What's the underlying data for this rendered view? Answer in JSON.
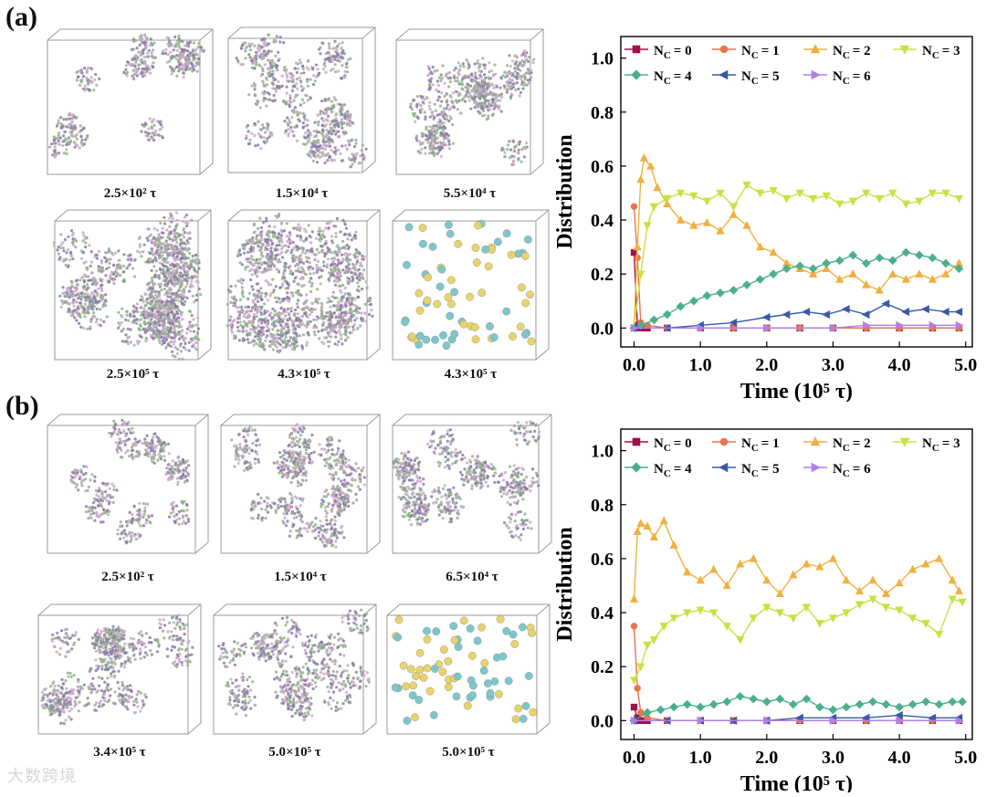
{
  "figure": {
    "watermark": "大数跨境",
    "panels": [
      {
        "label": "(a)",
        "snapshots": [
          {
            "caption": "2.5×10² τ",
            "style": "clusters"
          },
          {
            "caption": "1.5×10⁴ τ",
            "style": "network"
          },
          {
            "caption": "5.5×10⁴ τ",
            "style": "network"
          },
          {
            "caption": "2.5×10⁵ τ",
            "style": "dense"
          },
          {
            "caption": "4.3×10⁵ τ",
            "style": "dense"
          },
          {
            "caption": "4.3×10⁵ τ",
            "style": "beads"
          }
        ]
      },
      {
        "label": "(b)",
        "snapshots": [
          {
            "caption": "2.5×10² τ",
            "style": "clusters"
          },
          {
            "caption": "1.5×10⁴ τ",
            "style": "network"
          },
          {
            "caption": "6.5×10⁴ τ",
            "style": "network"
          },
          {
            "caption": "3.4×10⁵ τ",
            "style": "network"
          },
          {
            "caption": "5.0×10⁵ τ",
            "style": "network"
          },
          {
            "caption": "5.0×10⁵ τ",
            "style": "beads"
          }
        ]
      }
    ],
    "colors": {
      "bead_a": "#7ec6cc",
      "bead_b": "#e8d36a",
      "grain1": "#8b7aa8",
      "grain2": "#8fb48a",
      "grain3": "#c9a8c4",
      "box": "#9a9a9a"
    }
  },
  "chart_data": [
    {
      "type": "line",
      "panel": "(a)",
      "xlabel": "Time (10⁵ τ)",
      "ylabel": "Distribution",
      "xlim": [
        -0.2,
        5.1
      ],
      "ylim": [
        -0.07,
        1.08
      ],
      "xticks": [
        "0.0",
        "1.0",
        "2.0",
        "3.0",
        "4.0",
        "5.0"
      ],
      "yticks": [
        "0.0",
        "0.2",
        "0.4",
        "0.6",
        "0.8",
        "1.0"
      ],
      "series": [
        {
          "name": "N",
          "sub": "C",
          "val": "= 0",
          "color": "#a0104a",
          "marker": "square",
          "x": [
            0,
            0.05,
            0.1,
            0.2,
            0.5,
            1,
            1.5,
            2,
            2.5,
            3,
            3.5,
            4,
            4.5,
            4.9
          ],
          "y": [
            0.28,
            0.01,
            0,
            0,
            0,
            0,
            0,
            0,
            0,
            0,
            0,
            0,
            0,
            0
          ]
        },
        {
          "name": "N",
          "sub": "C",
          "val": "= 1",
          "color": "#e9744a",
          "marker": "circle",
          "x": [
            0,
            0.05,
            0.1,
            0.2,
            0.5,
            1,
            1.5,
            2,
            2.5,
            3,
            3.5,
            4,
            4.5,
            4.9
          ],
          "y": [
            0.45,
            0.26,
            0.02,
            0.01,
            0,
            0,
            0,
            0,
            0,
            0,
            0,
            0,
            0,
            0
          ]
        },
        {
          "name": "N",
          "sub": "C",
          "val": "= 2",
          "color": "#f0b040",
          "marker": "triangle-up",
          "x": [
            0,
            0.05,
            0.1,
            0.15,
            0.25,
            0.35,
            0.5,
            0.7,
            0.9,
            1.1,
            1.3,
            1.5,
            1.7,
            1.9,
            2.1,
            2.3,
            2.5,
            2.7,
            2.9,
            3.1,
            3.3,
            3.5,
            3.7,
            3.9,
            4.1,
            4.3,
            4.5,
            4.7,
            4.9
          ],
          "y": [
            0,
            0.3,
            0.55,
            0.63,
            0.6,
            0.52,
            0.46,
            0.4,
            0.38,
            0.39,
            0.36,
            0.42,
            0.38,
            0.3,
            0.28,
            0.24,
            0.22,
            0.2,
            0.22,
            0.18,
            0.2,
            0.16,
            0.14,
            0.2,
            0.18,
            0.2,
            0.18,
            0.2,
            0.24
          ]
        },
        {
          "name": "N",
          "sub": "C",
          "val": "= 3",
          "color": "#c8e040",
          "marker": "triangle-down",
          "x": [
            0,
            0.1,
            0.2,
            0.3,
            0.5,
            0.7,
            0.9,
            1.1,
            1.3,
            1.5,
            1.7,
            1.9,
            2.1,
            2.3,
            2.5,
            2.7,
            2.9,
            3.1,
            3.3,
            3.5,
            3.7,
            3.9,
            4.1,
            4.3,
            4.5,
            4.7,
            4.9
          ],
          "y": [
            0,
            0.2,
            0.38,
            0.45,
            0.48,
            0.5,
            0.49,
            0.47,
            0.5,
            0.45,
            0.53,
            0.5,
            0.51,
            0.48,
            0.5,
            0.48,
            0.49,
            0.46,
            0.47,
            0.5,
            0.48,
            0.5,
            0.46,
            0.47,
            0.5,
            0.5,
            0.48
          ]
        },
        {
          "name": "N",
          "sub": "C",
          "val": "= 4",
          "color": "#4ab08a",
          "marker": "diamond",
          "x": [
            0,
            0.1,
            0.3,
            0.5,
            0.7,
            0.9,
            1.1,
            1.3,
            1.5,
            1.7,
            1.9,
            2.1,
            2.3,
            2.5,
            2.7,
            2.9,
            3.1,
            3.3,
            3.5,
            3.7,
            3.9,
            4.1,
            4.3,
            4.5,
            4.7,
            4.9
          ],
          "y": [
            0,
            0.01,
            0.03,
            0.05,
            0.08,
            0.1,
            0.12,
            0.13,
            0.14,
            0.16,
            0.18,
            0.2,
            0.22,
            0.23,
            0.22,
            0.24,
            0.25,
            0.27,
            0.24,
            0.26,
            0.25,
            0.28,
            0.27,
            0.26,
            0.24,
            0.22
          ]
        },
        {
          "name": "N",
          "sub": "C",
          "val": "= 5",
          "color": "#3a5aa8",
          "marker": "triangle-left",
          "x": [
            0,
            0.5,
            1,
            1.5,
            2,
            2.3,
            2.6,
            2.9,
            3.2,
            3.5,
            3.8,
            4.1,
            4.4,
            4.7,
            4.9
          ],
          "y": [
            0,
            0,
            0.01,
            0.02,
            0.04,
            0.05,
            0.06,
            0.05,
            0.07,
            0.05,
            0.09,
            0.06,
            0.07,
            0.06,
            0.06
          ]
        },
        {
          "name": "N",
          "sub": "C",
          "val": "= 6",
          "color": "#b080e8",
          "marker": "triangle-right",
          "x": [
            0,
            1,
            2,
            3,
            3.5,
            4,
            4.5,
            4.9
          ],
          "y": [
            0,
            0,
            0,
            0,
            0.01,
            0.01,
            0.01,
            0.01
          ]
        }
      ]
    },
    {
      "type": "line",
      "panel": "(b)",
      "xlabel": "Time (10⁵ τ)",
      "ylabel": "Distribution",
      "xlim": [
        -0.2,
        5.1
      ],
      "ylim": [
        -0.07,
        1.08
      ],
      "xticks": [
        "0.0",
        "1.0",
        "2.0",
        "3.0",
        "4.0",
        "5.0"
      ],
      "yticks": [
        "0.0",
        "0.2",
        "0.4",
        "0.6",
        "0.8",
        "1.0"
      ],
      "series": [
        {
          "name": "N",
          "sub": "C",
          "val": "= 0",
          "color": "#a0104a",
          "marker": "square",
          "x": [
            0,
            0.05,
            0.1,
            0.2,
            0.5,
            1,
            1.5,
            2,
            2.5,
            3,
            3.5,
            4,
            4.5,
            4.9
          ],
          "y": [
            0.05,
            0.01,
            0,
            0,
            0,
            0,
            0,
            0,
            0,
            0,
            0,
            0,
            0,
            0
          ]
        },
        {
          "name": "N",
          "sub": "C",
          "val": "= 1",
          "color": "#e9744a",
          "marker": "circle",
          "x": [
            0,
            0.05,
            0.1,
            0.2,
            0.5,
            1,
            1.5,
            2,
            2.5,
            3,
            3.5,
            4,
            4.5,
            4.9
          ],
          "y": [
            0.35,
            0.12,
            0.03,
            0.01,
            0,
            0,
            0,
            0,
            0,
            0,
            0,
            0,
            0,
            0
          ]
        },
        {
          "name": "N",
          "sub": "C",
          "val": "= 2",
          "color": "#f0b040",
          "marker": "triangle-up",
          "x": [
            0,
            0.05,
            0.1,
            0.2,
            0.3,
            0.45,
            0.6,
            0.8,
            1,
            1.2,
            1.4,
            1.6,
            1.8,
            2,
            2.2,
            2.4,
            2.6,
            2.8,
            3,
            3.2,
            3.4,
            3.6,
            3.8,
            4,
            4.2,
            4.4,
            4.6,
            4.8,
            4.9
          ],
          "y": [
            0.45,
            0.7,
            0.73,
            0.72,
            0.68,
            0.74,
            0.65,
            0.55,
            0.52,
            0.56,
            0.5,
            0.58,
            0.6,
            0.52,
            0.47,
            0.54,
            0.58,
            0.57,
            0.6,
            0.52,
            0.48,
            0.52,
            0.47,
            0.51,
            0.56,
            0.58,
            0.6,
            0.52,
            0.48
          ]
        },
        {
          "name": "N",
          "sub": "C",
          "val": "= 3",
          "color": "#c8e040",
          "marker": "triangle-down",
          "x": [
            0,
            0.1,
            0.2,
            0.3,
            0.45,
            0.6,
            0.8,
            1,
            1.2,
            1.4,
            1.6,
            1.8,
            2,
            2.2,
            2.4,
            2.6,
            2.8,
            3,
            3.2,
            3.4,
            3.6,
            3.8,
            4,
            4.2,
            4.4,
            4.6,
            4.8,
            4.95
          ],
          "y": [
            0.15,
            0.2,
            0.28,
            0.3,
            0.35,
            0.38,
            0.4,
            0.41,
            0.4,
            0.35,
            0.3,
            0.38,
            0.42,
            0.4,
            0.38,
            0.42,
            0.36,
            0.38,
            0.4,
            0.43,
            0.45,
            0.42,
            0.41,
            0.38,
            0.36,
            0.32,
            0.45,
            0.44
          ]
        },
        {
          "name": "N",
          "sub": "C",
          "val": "= 4",
          "color": "#4ab08a",
          "marker": "diamond",
          "x": [
            0,
            0.2,
            0.4,
            0.6,
            0.8,
            1,
            1.2,
            1.4,
            1.6,
            1.8,
            2,
            2.2,
            2.4,
            2.6,
            2.8,
            3,
            3.2,
            3.4,
            3.6,
            3.8,
            4,
            4.2,
            4.4,
            4.6,
            4.8,
            4.95
          ],
          "y": [
            0,
            0.03,
            0.04,
            0.05,
            0.06,
            0.05,
            0.06,
            0.07,
            0.09,
            0.08,
            0.07,
            0.08,
            0.06,
            0.08,
            0.05,
            0.04,
            0.05,
            0.06,
            0.07,
            0.06,
            0.05,
            0.06,
            0.07,
            0.06,
            0.07,
            0.07
          ]
        },
        {
          "name": "N",
          "sub": "C",
          "val": "= 5",
          "color": "#3a5aa8",
          "marker": "triangle-left",
          "x": [
            0,
            0.5,
            1,
            1.5,
            2,
            2.5,
            3,
            3.5,
            4,
            4.5,
            4.9
          ],
          "y": [
            0,
            0,
            0,
            0,
            0,
            0.01,
            0.01,
            0.01,
            0.02,
            0.01,
            0.01
          ]
        },
        {
          "name": "N",
          "sub": "C",
          "val": "= 6",
          "color": "#b080e8",
          "marker": "triangle-right",
          "x": [
            0,
            1,
            2,
            3,
            4,
            4.9
          ],
          "y": [
            0,
            0,
            0,
            0,
            0,
            0
          ]
        }
      ]
    }
  ]
}
